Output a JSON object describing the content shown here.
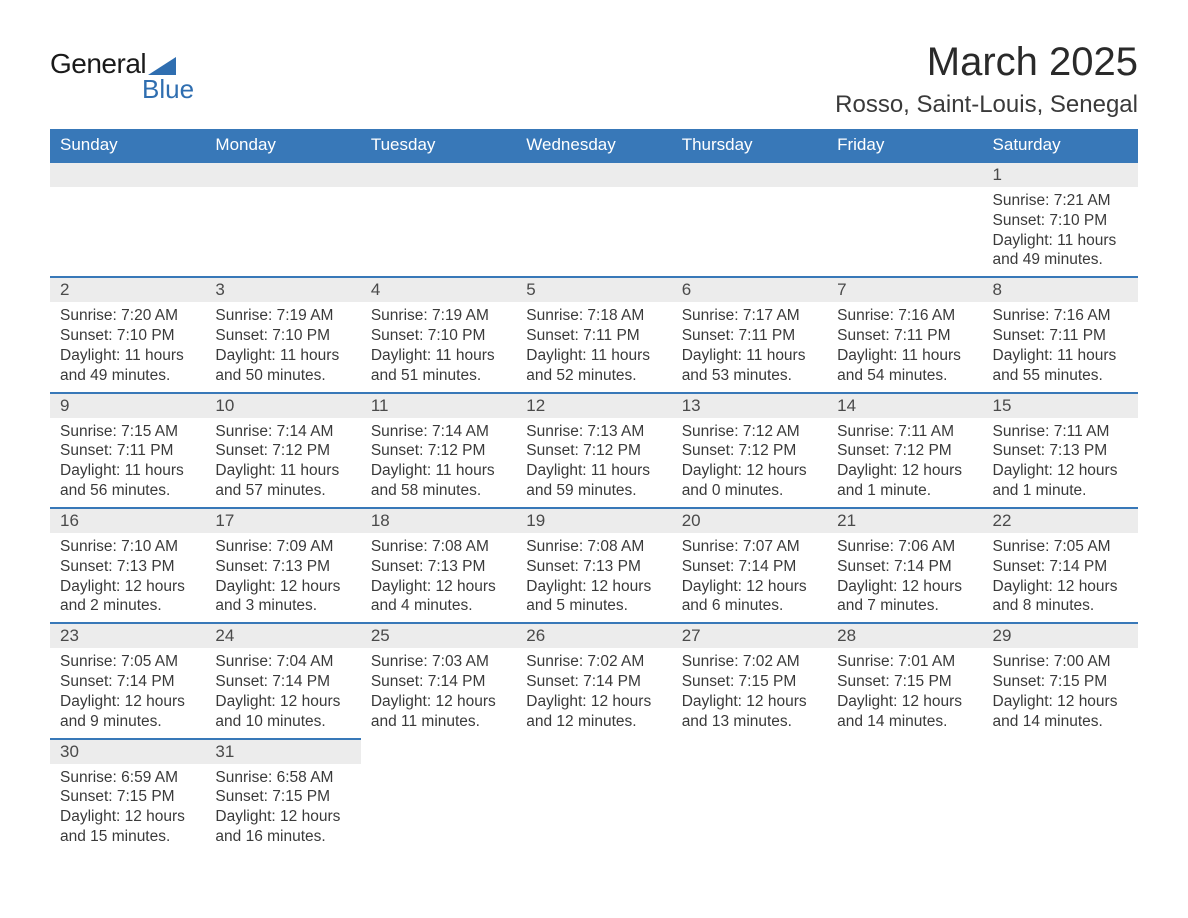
{
  "brand": {
    "word1": "General",
    "word2": "Blue",
    "accent_color": "#2f6eb0"
  },
  "title": {
    "month": "March 2025",
    "location": "Rosso, Saint-Louis, Senegal"
  },
  "calendar": {
    "type": "table",
    "header_bg": "#3878b8",
    "header_fg": "#ffffff",
    "row_divider_color": "#3878b8",
    "daynum_bg": "#ececec",
    "body_fontsize": 15.5,
    "columns": [
      "Sunday",
      "Monday",
      "Tuesday",
      "Wednesday",
      "Thursday",
      "Friday",
      "Saturday"
    ],
    "weeks": [
      [
        null,
        null,
        null,
        null,
        null,
        null,
        {
          "n": "1",
          "sunrise": "7:21 AM",
          "sunset": "7:10 PM",
          "daylight": "11 hours and 49 minutes."
        }
      ],
      [
        {
          "n": "2",
          "sunrise": "7:20 AM",
          "sunset": "7:10 PM",
          "daylight": "11 hours and 49 minutes."
        },
        {
          "n": "3",
          "sunrise": "7:19 AM",
          "sunset": "7:10 PM",
          "daylight": "11 hours and 50 minutes."
        },
        {
          "n": "4",
          "sunrise": "7:19 AM",
          "sunset": "7:10 PM",
          "daylight": "11 hours and 51 minutes."
        },
        {
          "n": "5",
          "sunrise": "7:18 AM",
          "sunset": "7:11 PM",
          "daylight": "11 hours and 52 minutes."
        },
        {
          "n": "6",
          "sunrise": "7:17 AM",
          "sunset": "7:11 PM",
          "daylight": "11 hours and 53 minutes."
        },
        {
          "n": "7",
          "sunrise": "7:16 AM",
          "sunset": "7:11 PM",
          "daylight": "11 hours and 54 minutes."
        },
        {
          "n": "8",
          "sunrise": "7:16 AM",
          "sunset": "7:11 PM",
          "daylight": "11 hours and 55 minutes."
        }
      ],
      [
        {
          "n": "9",
          "sunrise": "7:15 AM",
          "sunset": "7:11 PM",
          "daylight": "11 hours and 56 minutes."
        },
        {
          "n": "10",
          "sunrise": "7:14 AM",
          "sunset": "7:12 PM",
          "daylight": "11 hours and 57 minutes."
        },
        {
          "n": "11",
          "sunrise": "7:14 AM",
          "sunset": "7:12 PM",
          "daylight": "11 hours and 58 minutes."
        },
        {
          "n": "12",
          "sunrise": "7:13 AM",
          "sunset": "7:12 PM",
          "daylight": "11 hours and 59 minutes."
        },
        {
          "n": "13",
          "sunrise": "7:12 AM",
          "sunset": "7:12 PM",
          "daylight": "12 hours and 0 minutes."
        },
        {
          "n": "14",
          "sunrise": "7:11 AM",
          "sunset": "7:12 PM",
          "daylight": "12 hours and 1 minute."
        },
        {
          "n": "15",
          "sunrise": "7:11 AM",
          "sunset": "7:13 PM",
          "daylight": "12 hours and 1 minute."
        }
      ],
      [
        {
          "n": "16",
          "sunrise": "7:10 AM",
          "sunset": "7:13 PM",
          "daylight": "12 hours and 2 minutes."
        },
        {
          "n": "17",
          "sunrise": "7:09 AM",
          "sunset": "7:13 PM",
          "daylight": "12 hours and 3 minutes."
        },
        {
          "n": "18",
          "sunrise": "7:08 AM",
          "sunset": "7:13 PM",
          "daylight": "12 hours and 4 minutes."
        },
        {
          "n": "19",
          "sunrise": "7:08 AM",
          "sunset": "7:13 PM",
          "daylight": "12 hours and 5 minutes."
        },
        {
          "n": "20",
          "sunrise": "7:07 AM",
          "sunset": "7:14 PM",
          "daylight": "12 hours and 6 minutes."
        },
        {
          "n": "21",
          "sunrise": "7:06 AM",
          "sunset": "7:14 PM",
          "daylight": "12 hours and 7 minutes."
        },
        {
          "n": "22",
          "sunrise": "7:05 AM",
          "sunset": "7:14 PM",
          "daylight": "12 hours and 8 minutes."
        }
      ],
      [
        {
          "n": "23",
          "sunrise": "7:05 AM",
          "sunset": "7:14 PM",
          "daylight": "12 hours and 9 minutes."
        },
        {
          "n": "24",
          "sunrise": "7:04 AM",
          "sunset": "7:14 PM",
          "daylight": "12 hours and 10 minutes."
        },
        {
          "n": "25",
          "sunrise": "7:03 AM",
          "sunset": "7:14 PM",
          "daylight": "12 hours and 11 minutes."
        },
        {
          "n": "26",
          "sunrise": "7:02 AM",
          "sunset": "7:14 PM",
          "daylight": "12 hours and 12 minutes."
        },
        {
          "n": "27",
          "sunrise": "7:02 AM",
          "sunset": "7:15 PM",
          "daylight": "12 hours and 13 minutes."
        },
        {
          "n": "28",
          "sunrise": "7:01 AM",
          "sunset": "7:15 PM",
          "daylight": "12 hours and 14 minutes."
        },
        {
          "n": "29",
          "sunrise": "7:00 AM",
          "sunset": "7:15 PM",
          "daylight": "12 hours and 14 minutes."
        }
      ],
      [
        {
          "n": "30",
          "sunrise": "6:59 AM",
          "sunset": "7:15 PM",
          "daylight": "12 hours and 15 minutes."
        },
        {
          "n": "31",
          "sunrise": "6:58 AM",
          "sunset": "7:15 PM",
          "daylight": "12 hours and 16 minutes."
        },
        null,
        null,
        null,
        null,
        null
      ]
    ],
    "labels": {
      "sunrise": "Sunrise:",
      "sunset": "Sunset:",
      "daylight": "Daylight:"
    }
  }
}
